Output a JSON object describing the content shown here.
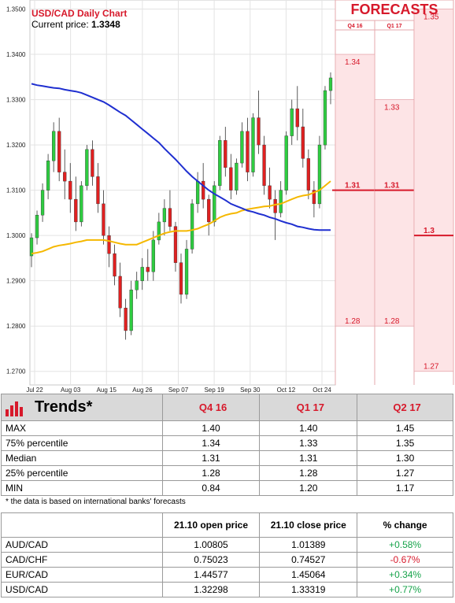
{
  "chart_data": {
    "type": "candlestick",
    "title": "USD/CAD Daily Chart",
    "current_price_label": "Current price:",
    "current_price": "1.3348",
    "ylim": [
      1.267,
      1.352
    ],
    "y_ticks": [
      "1.3500",
      "1.3400",
      "1.3300",
      "1.3200",
      "1.3100",
      "1.3000",
      "1.2900",
      "1.2800",
      "1.2700"
    ],
    "x_ticks": [
      "Jul 22",
      "Aug 03",
      "Aug 15",
      "Aug 26",
      "Sep 07",
      "Sep 19",
      "Sep 30",
      "Oct 12",
      "Oct 24"
    ],
    "candles": [
      [
        1.2955,
        1.3005,
        1.293,
        1.2995
      ],
      [
        1.2995,
        1.3055,
        1.298,
        1.3045
      ],
      [
        1.3045,
        1.3115,
        1.303,
        1.31
      ],
      [
        1.31,
        1.318,
        1.308,
        1.3165
      ],
      [
        1.3165,
        1.325,
        1.314,
        1.323
      ],
      [
        1.323,
        1.326,
        1.312,
        1.314
      ],
      [
        1.314,
        1.319,
        1.308,
        1.312
      ],
      [
        1.312,
        1.316,
        1.305,
        1.308
      ],
      [
        1.308,
        1.313,
        1.301,
        1.303
      ],
      [
        1.303,
        1.312,
        1.302,
        1.311
      ],
      [
        1.311,
        1.32,
        1.31,
        1.319
      ],
      [
        1.319,
        1.321,
        1.311,
        1.313
      ],
      [
        1.313,
        1.316,
        1.305,
        1.307
      ],
      [
        1.307,
        1.31,
        1.298,
        1.3
      ],
      [
        1.3,
        1.302,
        1.293,
        1.296
      ],
      [
        1.296,
        1.298,
        1.289,
        1.291
      ],
      [
        1.291,
        1.294,
        1.282,
        1.284
      ],
      [
        1.284,
        1.286,
        1.277,
        1.279
      ],
      [
        1.279,
        1.29,
        1.278,
        1.288
      ],
      [
        1.288,
        1.292,
        1.286,
        1.29
      ],
      [
        1.29,
        1.295,
        1.288,
        1.293
      ],
      [
        1.293,
        1.297,
        1.29,
        1.292
      ],
      [
        1.292,
        1.301,
        1.29,
        1.299
      ],
      [
        1.299,
        1.305,
        1.298,
        1.303
      ],
      [
        1.303,
        1.308,
        1.3,
        1.306
      ],
      [
        1.306,
        1.31,
        1.301,
        1.302
      ],
      [
        1.302,
        1.303,
        1.292,
        1.294
      ],
      [
        1.294,
        1.296,
        1.285,
        1.287
      ],
      [
        1.287,
        1.299,
        1.286,
        1.297
      ],
      [
        1.297,
        1.308,
        1.296,
        1.307
      ],
      [
        1.307,
        1.314,
        1.305,
        1.312
      ],
      [
        1.312,
        1.316,
        1.306,
        1.308
      ],
      [
        1.308,
        1.309,
        1.3,
        1.303
      ],
      [
        1.303,
        1.312,
        1.302,
        1.311
      ],
      [
        1.311,
        1.322,
        1.31,
        1.321
      ],
      [
        1.321,
        1.324,
        1.313,
        1.315
      ],
      [
        1.315,
        1.318,
        1.308,
        1.31
      ],
      [
        1.31,
        1.317,
        1.309,
        1.316
      ],
      [
        1.316,
        1.325,
        1.315,
        1.323
      ],
      [
        1.323,
        1.326,
        1.312,
        1.314
      ],
      [
        1.314,
        1.327,
        1.313,
        1.326
      ],
      [
        1.326,
        1.332,
        1.318,
        1.32
      ],
      [
        1.32,
        1.322,
        1.309,
        1.311
      ],
      [
        1.311,
        1.315,
        1.306,
        1.308
      ],
      [
        1.308,
        1.31,
        1.299,
        1.305
      ],
      [
        1.305,
        1.312,
        1.304,
        1.31
      ],
      [
        1.31,
        1.323,
        1.309,
        1.322
      ],
      [
        1.322,
        1.33,
        1.32,
        1.328
      ],
      [
        1.328,
        1.333,
        1.321,
        1.324
      ],
      [
        1.324,
        1.328,
        1.315,
        1.317
      ],
      [
        1.317,
        1.319,
        1.308,
        1.31
      ],
      [
        1.31,
        1.312,
        1.304,
        1.307
      ],
      [
        1.307,
        1.322,
        1.306,
        1.32
      ],
      [
        1.32,
        1.333,
        1.319,
        1.332
      ],
      [
        1.332,
        1.336,
        1.329,
        1.3348
      ]
    ],
    "ma_short": [
      1.296,
      1.2962,
      1.2965,
      1.297,
      1.2975,
      1.2978,
      1.298,
      1.2982,
      1.2985,
      1.2987,
      1.299,
      1.299,
      1.299,
      1.299,
      1.2988,
      1.2985,
      1.2982,
      1.298,
      1.298,
      1.298,
      1.2985,
      1.299,
      1.2995,
      1.3,
      1.3005,
      1.3008,
      1.301,
      1.301,
      1.301,
      1.3012,
      1.3015,
      1.302,
      1.3025,
      1.3032,
      1.304,
      1.3045,
      1.3048,
      1.305,
      1.3055,
      1.3058,
      1.306,
      1.3062,
      1.3064,
      1.3065,
      1.3068,
      1.307,
      1.3075,
      1.308,
      1.3085,
      1.3088,
      1.309,
      1.3095,
      1.31,
      1.311,
      1.312
    ],
    "ma_long": [
      1.3335,
      1.3332,
      1.333,
      1.3328,
      1.3326,
      1.3325,
      1.3322,
      1.332,
      1.3318,
      1.3315,
      1.331,
      1.3305,
      1.33,
      1.3295,
      1.3288,
      1.328,
      1.3272,
      1.3265,
      1.3255,
      1.3245,
      1.3235,
      1.3225,
      1.3215,
      1.3205,
      1.3192,
      1.318,
      1.3168,
      1.3155,
      1.3142,
      1.313,
      1.312,
      1.311,
      1.31,
      1.3092,
      1.3085,
      1.3078,
      1.307,
      1.3065,
      1.306,
      1.3055,
      1.3052,
      1.3048,
      1.3045,
      1.304,
      1.3037,
      1.3032,
      1.3028,
      1.3025,
      1.302,
      1.3018,
      1.3015,
      1.3013,
      1.3012,
      1.3012,
      1.3012
    ],
    "colors": {
      "up": "#2ecc40",
      "down": "#e02020",
      "ma_short": "#f5b800",
      "ma_long": "#1f2fd0",
      "grid": "#e3e3e3",
      "forecast": "#d7192b"
    }
  },
  "forecasts": {
    "title": "FORECASTS",
    "columns": [
      {
        "label": "Q4 16",
        "max": 1.34,
        "max_label": "1.34",
        "median": 1.31,
        "median_label": "1.31",
        "min_display": 1.28,
        "min_label": "1.28"
      },
      {
        "label": "Q1 17",
        "max": 1.33,
        "max_label": "1.33",
        "median": 1.31,
        "median_label": "1.31",
        "min_display": 1.28,
        "min_label": "1.28"
      },
      {
        "label": "Q2 17",
        "max": 1.35,
        "max_label": "1.35",
        "median": 1.3,
        "median_label": "1.3",
        "min_display": 1.27,
        "min_label": "1.27"
      }
    ]
  },
  "trends": {
    "title": "Trends*",
    "headers": [
      "Q4 16",
      "Q1 17",
      "Q2 17"
    ],
    "rows": [
      {
        "label": "MAX",
        "values": [
          "1.40",
          "1.40",
          "1.45"
        ]
      },
      {
        "label": "75% percentile",
        "values": [
          "1.34",
          "1.33",
          "1.35"
        ]
      },
      {
        "label": "Median",
        "values": [
          "1.31",
          "1.31",
          "1.30"
        ]
      },
      {
        "label": "25% percentile",
        "values": [
          "1.28",
          "1.28",
          "1.27"
        ]
      },
      {
        "label": "MIN",
        "values": [
          "0.84",
          "1.20",
          "1.17"
        ]
      }
    ],
    "note": "* the data is based on international banks' forecasts"
  },
  "prices": {
    "headers": [
      "",
      "21.10 open price",
      "21.10 close price",
      "% change"
    ],
    "rows": [
      {
        "pair": "AUD/CAD",
        "open": "1.00805",
        "close": "1.01389",
        "change": "+0.58%",
        "dir": "pos"
      },
      {
        "pair": "CAD/CHF",
        "open": "0.75023",
        "close": "0.74527",
        "change": "-0.67%",
        "dir": "neg"
      },
      {
        "pair": "EUR/CAD",
        "open": "1.44577",
        "close": "1.45064",
        "change": "+0.34%",
        "dir": "pos"
      },
      {
        "pair": "USD/CAD",
        "open": "1.32298",
        "close": "1.33319",
        "change": "+0.77%",
        "dir": "pos"
      }
    ]
  }
}
